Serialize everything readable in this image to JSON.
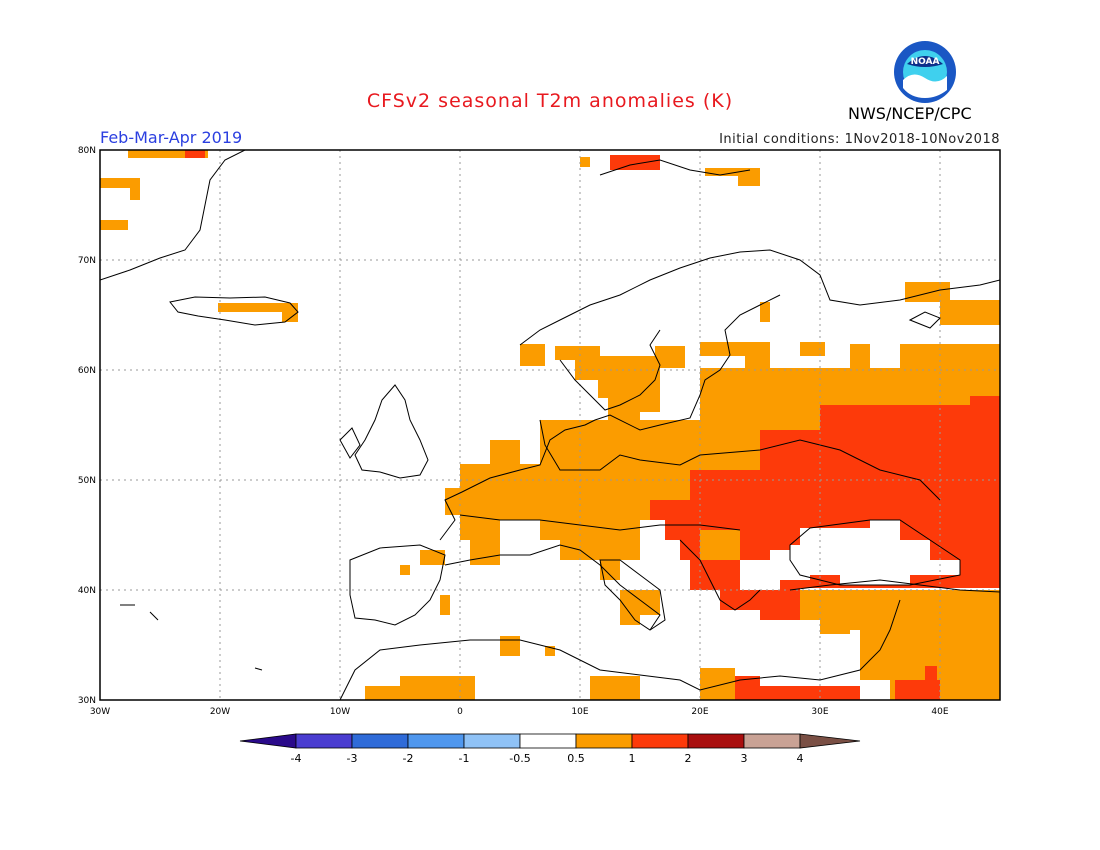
{
  "header": {
    "title": "CFSv2 seasonal T2m anomalies (K)",
    "period": "Feb-Mar-Apr 2019",
    "initial_conditions": "Initial conditions: 1Nov2018-10Nov2018",
    "agency": "NWS/NCEP/CPC",
    "logo_text": "NOAA"
  },
  "map": {
    "lon_labels": [
      "30W",
      "20W",
      "10W",
      "0",
      "10E",
      "20E",
      "30E",
      "40E"
    ],
    "lat_labels": [
      "80N",
      "70N",
      "60N",
      "50N",
      "40N",
      "30N"
    ]
  },
  "colorbar": {
    "labels": [
      "-4",
      "-3",
      "-2",
      "-1",
      "-0.5",
      "0.5",
      "1",
      "2",
      "3",
      "4"
    ],
    "colors": {
      "lt_-4": "#2a0a8a",
      "-4_-3": "#4a3dd0",
      "-3_-2": "#2f6bd8",
      "-2_-1": "#4f97ee",
      "-1_-0.5": "#8fc2f6",
      "-0.5_0.5": "#ffffff",
      "0.5_1": "#fb9c00",
      "1_2": "#fd3a0a",
      "2_3": "#a90f0f",
      "3_4": "#c9a295",
      "gt_4": "#7a4f44"
    }
  }
}
